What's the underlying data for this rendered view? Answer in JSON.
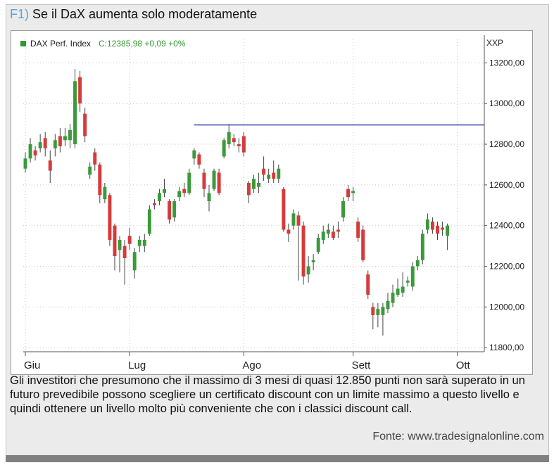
{
  "figure": {
    "number": "F1)",
    "title": "Se il DaX aumenta solo moderatamente",
    "caption": "Gli investitori che presumono che il massimo di 3 mesi di quasi 12.850 punti non sarà superato in un futuro prevedibile possono scegliere un certificato discount con un limite massimo a questo livello e quindi ottenere un livello molto più conveniente che con i classici discount call.",
    "source": "Fonte: www.tradesignalonline.com"
  },
  "colors": {
    "up": "#3a9a3a",
    "down": "#d63a3a",
    "limit_line": "#4a56b8",
    "grid": "#c8c8c8",
    "axis_text": "#222222",
    "legend_green": "#2e9a2e"
  },
  "chart_data": {
    "type": "candlestick",
    "legend": {
      "label": "DAX Perf. Index",
      "last": "C:12385,98 +0,09 +0%"
    },
    "y_axis_title": "XXP",
    "ylim": [
      11780,
      13260
    ],
    "y_ticks": [
      11800,
      12000,
      12200,
      12400,
      12600,
      12800,
      13000,
      13200
    ],
    "y_tick_labels": [
      "11800,00",
      "12000,00",
      "12200,00",
      "12400,00",
      "12600,00",
      "12800,00",
      "13000,00",
      "13200,00"
    ],
    "x_labels": [
      {
        "label": "Giu",
        "index": 0
      },
      {
        "label": "Lug",
        "index": 21
      },
      {
        "label": "Ago",
        "index": 44
      },
      {
        "label": "Sett",
        "index": 66
      },
      {
        "label": "Ott",
        "index": 87
      }
    ],
    "x_count": 93,
    "limit_line": {
      "value": 12895,
      "from_index": 34,
      "to_index": 93
    },
    "grid": true,
    "candles": [
      {
        "i": 0,
        "o": 12680,
        "c": 12730,
        "h": 12760,
        "l": 12660
      },
      {
        "i": 1,
        "o": 12730,
        "c": 12800,
        "h": 12830,
        "l": 12710
      },
      {
        "i": 2,
        "o": 12770,
        "c": 12745,
        "h": 12790,
        "l": 12720
      },
      {
        "i": 3,
        "o": 12780,
        "c": 12810,
        "h": 12850,
        "l": 12760
      },
      {
        "i": 4,
        "o": 12830,
        "c": 12780,
        "h": 12860,
        "l": 12740
      },
      {
        "i": 5,
        "o": 12720,
        "c": 12670,
        "h": 12770,
        "l": 12610
      },
      {
        "i": 6,
        "o": 12780,
        "c": 12820,
        "h": 12850,
        "l": 12740
      },
      {
        "i": 7,
        "o": 12840,
        "c": 12790,
        "h": 12880,
        "l": 12760
      },
      {
        "i": 8,
        "o": 12820,
        "c": 12840,
        "h": 12880,
        "l": 12790
      },
      {
        "i": 9,
        "o": 12820,
        "c": 12870,
        "h": 12900,
        "l": 12780
      },
      {
        "i": 10,
        "o": 12800,
        "c": 13110,
        "h": 13170,
        "l": 12780
      },
      {
        "i": 11,
        "o": 13130,
        "c": 13000,
        "h": 13160,
        "l": 12960
      },
      {
        "i": 12,
        "o": 12950,
        "c": 12840,
        "h": 12980,
        "l": 12810
      },
      {
        "i": 13,
        "o": 12650,
        "c": 12690,
        "h": 12710,
        "l": 12630
      },
      {
        "i": 14,
        "o": 12760,
        "c": 12700,
        "h": 12780,
        "l": 12670
      },
      {
        "i": 15,
        "o": 12700,
        "c": 12550,
        "h": 12710,
        "l": 12510
      },
      {
        "i": 16,
        "o": 12530,
        "c": 12590,
        "h": 12610,
        "l": 12510
      },
      {
        "i": 17,
        "o": 12550,
        "c": 12330,
        "h": 12560,
        "l": 12300
      },
      {
        "i": 18,
        "o": 12400,
        "c": 12250,
        "h": 12410,
        "l": 12180
      },
      {
        "i": 19,
        "o": 12280,
        "c": 12330,
        "h": 12350,
        "l": 12170
      },
      {
        "i": 20,
        "o": 12300,
        "c": 12240,
        "h": 12330,
        "l": 12110
      },
      {
        "i": 21,
        "o": 12350,
        "c": 12310,
        "h": 12390,
        "l": 12280
      },
      {
        "i": 22,
        "o": 12180,
        "c": 12270,
        "h": 12290,
        "l": 12140
      },
      {
        "i": 23,
        "o": 12300,
        "c": 12330,
        "h": 12350,
        "l": 12270
      },
      {
        "i": 24,
        "o": 12300,
        "c": 12330,
        "h": 12360,
        "l": 12270
      },
      {
        "i": 25,
        "o": 12360,
        "c": 12480,
        "h": 12500,
        "l": 12350
      },
      {
        "i": 26,
        "o": 12510,
        "c": 12500,
        "h": 12530,
        "l": 12480
      },
      {
        "i": 27,
        "o": 12520,
        "c": 12560,
        "h": 12580,
        "l": 12500
      },
      {
        "i": 28,
        "o": 12560,
        "c": 12580,
        "h": 12630,
        "l": 12540
      },
      {
        "i": 29,
        "o": 12520,
        "c": 12430,
        "h": 12530,
        "l": 12410
      },
      {
        "i": 30,
        "o": 12440,
        "c": 12520,
        "h": 12530,
        "l": 12420
      },
      {
        "i": 31,
        "o": 12540,
        "c": 12570,
        "h": 12590,
        "l": 12520
      },
      {
        "i": 32,
        "o": 12580,
        "c": 12560,
        "h": 12610,
        "l": 12540
      },
      {
        "i": 33,
        "o": 12560,
        "c": 12660,
        "h": 12680,
        "l": 12550
      },
      {
        "i": 34,
        "o": 12730,
        "c": 12770,
        "h": 12780,
        "l": 12700
      },
      {
        "i": 35,
        "o": 12750,
        "c": 12700,
        "h": 12760,
        "l": 12680
      },
      {
        "i": 36,
        "o": 12660,
        "c": 12580,
        "h": 12680,
        "l": 12540
      },
      {
        "i": 37,
        "o": 12520,
        "c": 12560,
        "h": 12600,
        "l": 12470
      },
      {
        "i": 38,
        "o": 12580,
        "c": 12670,
        "h": 12680,
        "l": 12570
      },
      {
        "i": 39,
        "o": 12660,
        "c": 12560,
        "h": 12680,
        "l": 12550
      },
      {
        "i": 40,
        "o": 12740,
        "c": 12820,
        "h": 12830,
        "l": 12730
      },
      {
        "i": 41,
        "o": 12800,
        "c": 12860,
        "h": 12900,
        "l": 12780
      },
      {
        "i": 42,
        "o": 12830,
        "c": 12810,
        "h": 12850,
        "l": 12790
      },
      {
        "i": 43,
        "o": 12800,
        "c": 12790,
        "h": 12830,
        "l": 12760
      },
      {
        "i": 44,
        "o": 12840,
        "c": 12760,
        "h": 12860,
        "l": 12740
      },
      {
        "i": 45,
        "o": 12610,
        "c": 12550,
        "h": 12620,
        "l": 12510
      },
      {
        "i": 46,
        "o": 12580,
        "c": 12630,
        "h": 12650,
        "l": 12560
      },
      {
        "i": 47,
        "o": 12590,
        "c": 12610,
        "h": 12660,
        "l": 12560
      },
      {
        "i": 48,
        "o": 12680,
        "c": 12650,
        "h": 12740,
        "l": 12620
      },
      {
        "i": 49,
        "o": 12630,
        "c": 12650,
        "h": 12680,
        "l": 12610
      },
      {
        "i": 50,
        "o": 12660,
        "c": 12630,
        "h": 12720,
        "l": 12610
      },
      {
        "i": 51,
        "o": 12630,
        "c": 12680,
        "h": 12700,
        "l": 12610
      },
      {
        "i": 52,
        "o": 12580,
        "c": 12380,
        "h": 12590,
        "l": 12370
      },
      {
        "i": 53,
        "o": 12380,
        "c": 12360,
        "h": 12410,
        "l": 12320
      },
      {
        "i": 54,
        "o": 12400,
        "c": 12460,
        "h": 12480,
        "l": 12380
      },
      {
        "i": 55,
        "o": 12450,
        "c": 12400,
        "h": 12470,
        "l": 12130
      },
      {
        "i": 56,
        "o": 12400,
        "c": 12150,
        "h": 12420,
        "l": 12110
      },
      {
        "i": 57,
        "o": 12160,
        "c": 12200,
        "h": 12250,
        "l": 12120
      },
      {
        "i": 58,
        "o": 12220,
        "c": 12230,
        "h": 12260,
        "l": 12180
      },
      {
        "i": 59,
        "o": 12270,
        "c": 12340,
        "h": 12360,
        "l": 12260
      },
      {
        "i": 60,
        "o": 12330,
        "c": 12370,
        "h": 12400,
        "l": 12310
      },
      {
        "i": 61,
        "o": 12360,
        "c": 12380,
        "h": 12410,
        "l": 12340
      },
      {
        "i": 62,
        "o": 12370,
        "c": 12340,
        "h": 12400,
        "l": 12330
      },
      {
        "i": 63,
        "o": 12380,
        "c": 12370,
        "h": 12420,
        "l": 12340
      },
      {
        "i": 64,
        "o": 12440,
        "c": 12520,
        "h": 12540,
        "l": 12420
      },
      {
        "i": 65,
        "o": 12580,
        "c": 12540,
        "h": 12600,
        "l": 12520
      },
      {
        "i": 66,
        "o": 12560,
        "c": 12570,
        "h": 12590,
        "l": 12520
      },
      {
        "i": 67,
        "o": 12420,
        "c": 12340,
        "h": 12440,
        "l": 12320
      },
      {
        "i": 68,
        "o": 12380,
        "c": 12230,
        "h": 12400,
        "l": 12220
      },
      {
        "i": 69,
        "o": 12160,
        "c": 12060,
        "h": 12180,
        "l": 12040
      },
      {
        "i": 70,
        "o": 12000,
        "c": 11960,
        "h": 12020,
        "l": 11890
      },
      {
        "i": 71,
        "o": 11960,
        "c": 11990,
        "h": 12020,
        "l": 11900
      },
      {
        "i": 72,
        "o": 11960,
        "c": 12000,
        "h": 12020,
        "l": 11860
      },
      {
        "i": 73,
        "o": 11990,
        "c": 12030,
        "h": 12070,
        "l": 11970
      },
      {
        "i": 74,
        "o": 12020,
        "c": 12070,
        "h": 12110,
        "l": 12000
      },
      {
        "i": 75,
        "o": 12060,
        "c": 12090,
        "h": 12140,
        "l": 12050
      },
      {
        "i": 76,
        "o": 12070,
        "c": 12100,
        "h": 12170,
        "l": 12050
      },
      {
        "i": 77,
        "o": 12120,
        "c": 12130,
        "h": 12150,
        "l": 12100
      },
      {
        "i": 78,
        "o": 12100,
        "c": 12200,
        "h": 12220,
        "l": 12080
      },
      {
        "i": 79,
        "o": 12200,
        "c": 12230,
        "h": 12250,
        "l": 12180
      },
      {
        "i": 80,
        "o": 12230,
        "c": 12360,
        "h": 12380,
        "l": 12210
      },
      {
        "i": 81,
        "o": 12380,
        "c": 12430,
        "h": 12460,
        "l": 12360
      },
      {
        "i": 82,
        "o": 12420,
        "c": 12380,
        "h": 12440,
        "l": 12360
      },
      {
        "i": 83,
        "o": 12400,
        "c": 12360,
        "h": 12420,
        "l": 12330
      },
      {
        "i": 84,
        "o": 12390,
        "c": 12380,
        "h": 12420,
        "l": 12350
      },
      {
        "i": 85,
        "o": 12350,
        "c": 12400,
        "h": 12410,
        "l": 12280
      }
    ]
  }
}
